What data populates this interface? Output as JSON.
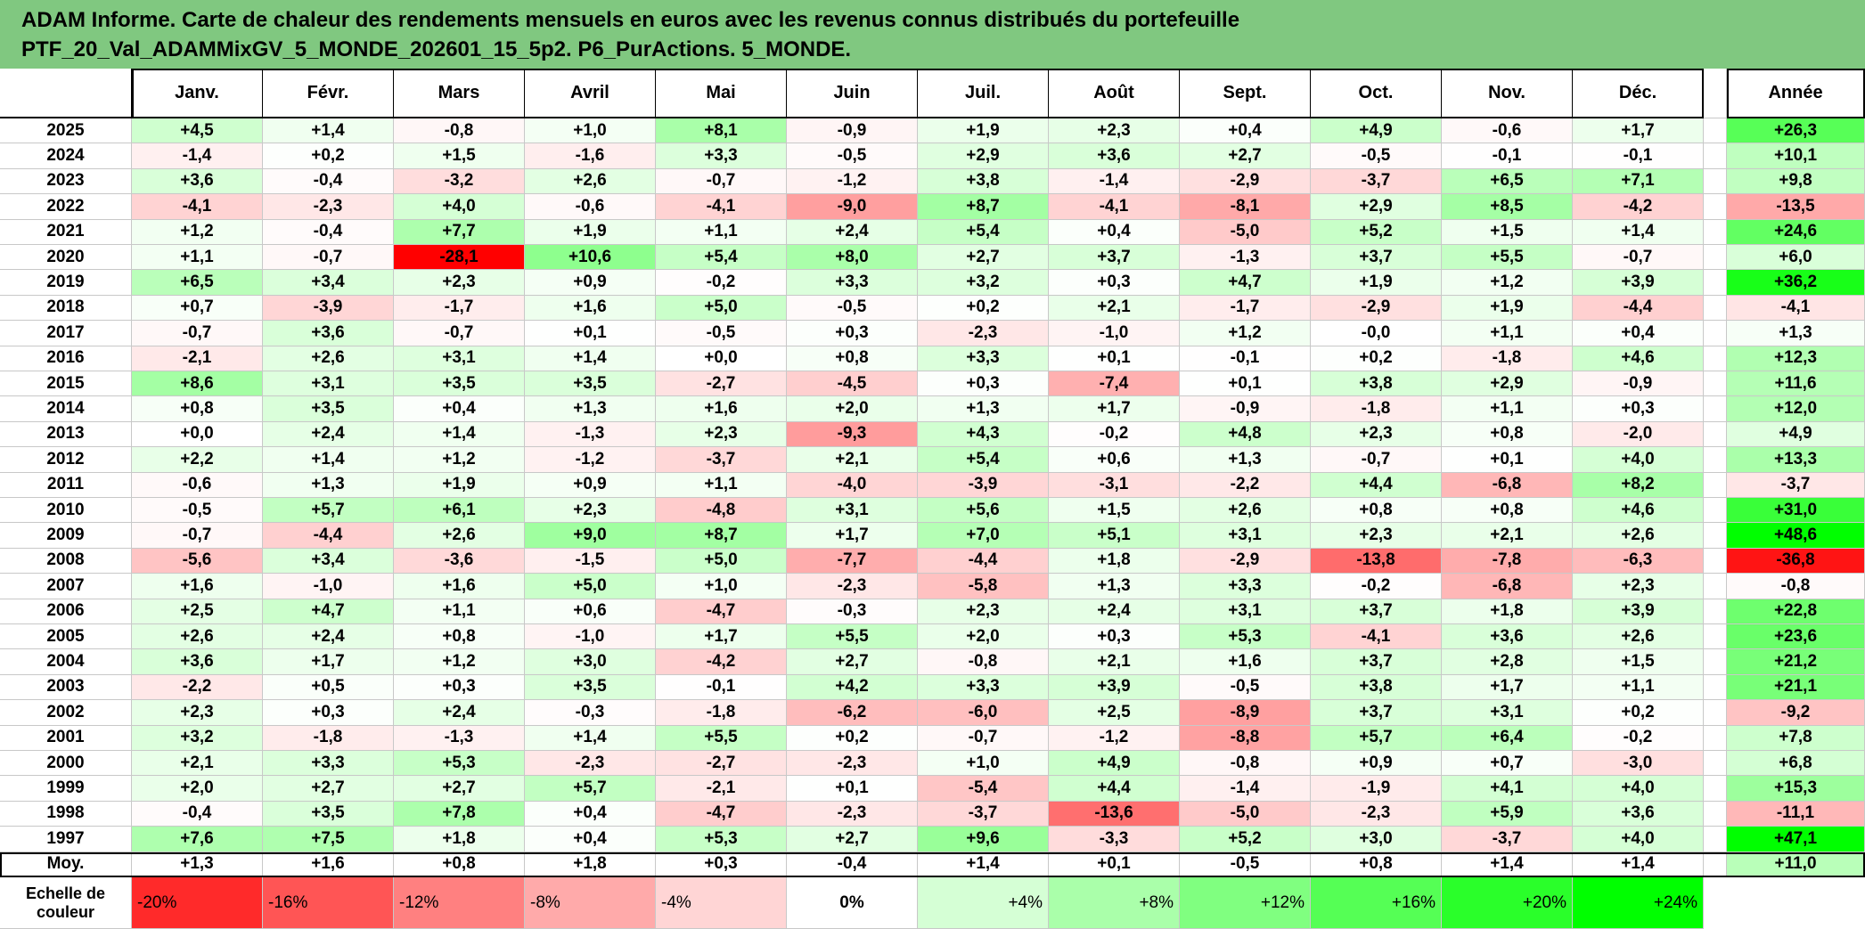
{
  "title": {
    "line1": "ADAM Informe. Carte de chaleur des rendements mensuels en euros avec les revenus connus distribués du portefeuille",
    "line2": "PTF_20_Val_ADAMMixGV_5_MONDE_202601_15_5p2. P6_PurActions. 5_MONDE."
  },
  "corner_label": "",
  "chart_data": {
    "type": "heatmap",
    "columns": [
      "Janv.",
      "Févr.",
      "Mars",
      "Avril",
      "Mai",
      "Juin",
      "Juil.",
      "Août",
      "Sept.",
      "Oct.",
      "Nov.",
      "Déc."
    ],
    "year_column": "Année",
    "rows": [
      {
        "year": "2025",
        "values": [
          "+4,5",
          "+1,4",
          "-0,8",
          "+1,0",
          "+8,1",
          "-0,9",
          "+1,9",
          "+2,3",
          "+0,4",
          "+4,9",
          "-0,6",
          "+1,7"
        ],
        "annual": "+26,3"
      },
      {
        "year": "2024",
        "values": [
          "-1,4",
          "+0,2",
          "+1,5",
          "-1,6",
          "+3,3",
          "-0,5",
          "+2,9",
          "+3,6",
          "+2,7",
          "-0,5",
          "-0,1",
          "-0,1"
        ],
        "annual": "+10,1"
      },
      {
        "year": "2023",
        "values": [
          "+3,6",
          "-0,4",
          "-3,2",
          "+2,6",
          "-0,7",
          "-1,2",
          "+3,8",
          "-1,4",
          "-2,9",
          "-3,7",
          "+6,5",
          "+7,1"
        ],
        "annual": "+9,8"
      },
      {
        "year": "2022",
        "values": [
          "-4,1",
          "-2,3",
          "+4,0",
          "-0,6",
          "-4,1",
          "-9,0",
          "+8,7",
          "-4,1",
          "-8,1",
          "+2,9",
          "+8,5",
          "-4,2"
        ],
        "annual": "-13,5"
      },
      {
        "year": "2021",
        "values": [
          "+1,2",
          "-0,4",
          "+7,7",
          "+1,9",
          "+1,1",
          "+2,4",
          "+5,4",
          "+0,4",
          "-5,0",
          "+5,2",
          "+1,5",
          "+1,4"
        ],
        "annual": "+24,6"
      },
      {
        "year": "2020",
        "values": [
          "+1,1",
          "-0,7",
          "-28,1",
          "+10,6",
          "+5,4",
          "+8,0",
          "+2,7",
          "+3,7",
          "-1,3",
          "+3,7",
          "+5,5",
          "-0,7"
        ],
        "annual": "+6,0"
      },
      {
        "year": "2019",
        "values": [
          "+6,5",
          "+3,4",
          "+2,3",
          "+0,9",
          "-0,2",
          "+3,3",
          "+3,2",
          "+0,3",
          "+4,7",
          "+1,9",
          "+1,2",
          "+3,9"
        ],
        "annual": "+36,2"
      },
      {
        "year": "2018",
        "values": [
          "+0,7",
          "-3,9",
          "-1,7",
          "+1,6",
          "+5,0",
          "-0,5",
          "+0,2",
          "+2,1",
          "-1,7",
          "-2,9",
          "+1,9",
          "-4,4"
        ],
        "annual": "-4,1"
      },
      {
        "year": "2017",
        "values": [
          "-0,7",
          "+3,6",
          "-0,7",
          "+0,1",
          "-0,5",
          "+0,3",
          "-2,3",
          "-1,0",
          "+1,2",
          "-0,0",
          "+1,1",
          "+0,4"
        ],
        "annual": "+1,3"
      },
      {
        "year": "2016",
        "values": [
          "-2,1",
          "+2,6",
          "+3,1",
          "+1,4",
          "+0,0",
          "+0,8",
          "+3,3",
          "+0,1",
          "-0,1",
          "+0,2",
          "-1,8",
          "+4,6"
        ],
        "annual": "+12,3"
      },
      {
        "year": "2015",
        "values": [
          "+8,6",
          "+3,1",
          "+3,5",
          "+3,5",
          "-2,7",
          "-4,5",
          "+0,3",
          "-7,4",
          "+0,1",
          "+3,8",
          "+2,9",
          "-0,9"
        ],
        "annual": "+11,6"
      },
      {
        "year": "2014",
        "values": [
          "+0,8",
          "+3,5",
          "+0,4",
          "+1,3",
          "+1,6",
          "+2,0",
          "+1,3",
          "+1,7",
          "-0,9",
          "-1,8",
          "+1,1",
          "+0,3"
        ],
        "annual": "+12,0"
      },
      {
        "year": "2013",
        "values": [
          "+0,0",
          "+2,4",
          "+1,4",
          "-1,3",
          "+2,3",
          "-9,3",
          "+4,3",
          "-0,2",
          "+4,8",
          "+2,3",
          "+0,8",
          "-2,0"
        ],
        "annual": "+4,9"
      },
      {
        "year": "2012",
        "values": [
          "+2,2",
          "+1,4",
          "+1,2",
          "-1,2",
          "-3,7",
          "+2,1",
          "+5,4",
          "+0,6",
          "+1,3",
          "-0,7",
          "+0,1",
          "+4,0"
        ],
        "annual": "+13,3"
      },
      {
        "year": "2011",
        "values": [
          "-0,6",
          "+1,3",
          "+1,9",
          "+0,9",
          "+1,1",
          "-4,0",
          "-3,9",
          "-3,1",
          "-2,2",
          "+4,4",
          "-6,8",
          "+8,2"
        ],
        "annual": "-3,7"
      },
      {
        "year": "2010",
        "values": [
          "-0,5",
          "+5,7",
          "+6,1",
          "+2,3",
          "-4,8",
          "+3,1",
          "+5,6",
          "+1,5",
          "+2,6",
          "+0,8",
          "+0,8",
          "+4,6"
        ],
        "annual": "+31,0"
      },
      {
        "year": "2009",
        "values": [
          "-0,7",
          "-4,4",
          "+2,6",
          "+9,0",
          "+8,7",
          "+1,7",
          "+7,0",
          "+5,1",
          "+3,1",
          "+2,3",
          "+2,1",
          "+2,6"
        ],
        "annual": "+48,6"
      },
      {
        "year": "2008",
        "values": [
          "-5,6",
          "+3,4",
          "-3,6",
          "-1,5",
          "+5,0",
          "-7,7",
          "-4,4",
          "+1,8",
          "-2,9",
          "-13,8",
          "-7,8",
          "-6,3"
        ],
        "annual": "-36,8"
      },
      {
        "year": "2007",
        "values": [
          "+1,6",
          "-1,0",
          "+1,6",
          "+5,0",
          "+1,0",
          "-2,3",
          "-5,8",
          "+1,3",
          "+3,3",
          "-0,2",
          "-6,8",
          "+2,3"
        ],
        "annual": "-0,8"
      },
      {
        "year": "2006",
        "values": [
          "+2,5",
          "+4,7",
          "+1,1",
          "+0,6",
          "-4,7",
          "-0,3",
          "+2,3",
          "+2,4",
          "+3,1",
          "+3,7",
          "+1,8",
          "+3,9"
        ],
        "annual": "+22,8"
      },
      {
        "year": "2005",
        "values": [
          "+2,6",
          "+2,4",
          "+0,8",
          "-1,0",
          "+1,7",
          "+5,5",
          "+2,0",
          "+0,3",
          "+5,3",
          "-4,1",
          "+3,6",
          "+2,6"
        ],
        "annual": "+23,6"
      },
      {
        "year": "2004",
        "values": [
          "+3,6",
          "+1,7",
          "+1,2",
          "+3,0",
          "-4,2",
          "+2,7",
          "-0,8",
          "+2,1",
          "+1,6",
          "+3,7",
          "+2,8",
          "+1,5"
        ],
        "annual": "+21,2"
      },
      {
        "year": "2003",
        "values": [
          "-2,2",
          "+0,5",
          "+0,3",
          "+3,5",
          "-0,1",
          "+4,2",
          "+3,3",
          "+3,9",
          "-0,5",
          "+3,8",
          "+1,7",
          "+1,1"
        ],
        "annual": "+21,1"
      },
      {
        "year": "2002",
        "values": [
          "+2,3",
          "+0,3",
          "+2,4",
          "-0,3",
          "-1,8",
          "-6,2",
          "-6,0",
          "+2,5",
          "-8,9",
          "+3,7",
          "+3,1",
          "+0,2"
        ],
        "annual": "-9,2"
      },
      {
        "year": "2001",
        "values": [
          "+3,2",
          "-1,8",
          "-1,3",
          "+1,4",
          "+5,5",
          "+0,2",
          "-0,7",
          "-1,2",
          "-8,8",
          "+5,7",
          "+6,4",
          "-0,2"
        ],
        "annual": "+7,8"
      },
      {
        "year": "2000",
        "values": [
          "+2,1",
          "+3,3",
          "+5,3",
          "-2,3",
          "-2,7",
          "-2,3",
          "+1,0",
          "+4,9",
          "-0,8",
          "+0,9",
          "+0,7",
          "-3,0"
        ],
        "annual": "+6,8"
      },
      {
        "year": "1999",
        "values": [
          "+2,0",
          "+2,7",
          "+2,7",
          "+5,7",
          "-2,1",
          "+0,1",
          "-5,4",
          "+4,4",
          "-1,4",
          "-1,9",
          "+4,1",
          "+4,0"
        ],
        "annual": "+15,3"
      },
      {
        "year": "1998",
        "values": [
          "-0,4",
          "+3,5",
          "+7,8",
          "+0,4",
          "-4,7",
          "-2,3",
          "-3,7",
          "-13,6",
          "-5,0",
          "-2,3",
          "+5,9",
          "+3,6"
        ],
        "annual": "-11,1"
      },
      {
        "year": "1997",
        "values": [
          "+7,6",
          "+7,5",
          "+1,8",
          "+0,4",
          "+5,3",
          "+2,7",
          "+9,6",
          "-3,3",
          "+5,2",
          "+3,0",
          "-3,7",
          "+4,0"
        ],
        "annual": "+47,1"
      }
    ],
    "average": {
      "label": "Moy.",
      "values": [
        "+1,3",
        "+1,6",
        "+0,8",
        "+1,8",
        "+0,3",
        "-0,4",
        "+1,4",
        "+0,1",
        "-0,5",
        "+0,8",
        "+1,4",
        "+1,4"
      ],
      "annual": "+11,0"
    },
    "color_scale": {
      "label_line1": "Echelle de",
      "label_line2": "couleur",
      "stops": [
        "-20%",
        "-16%",
        "-12%",
        "-8%",
        "-4%",
        "0%",
        "+4%",
        "+8%",
        "+12%",
        "+16%",
        "+20%",
        "+24%"
      ],
      "negative_color": "#ff0000",
      "neutral_color": "#ffffff",
      "positive_color": "#00ff00"
    }
  }
}
